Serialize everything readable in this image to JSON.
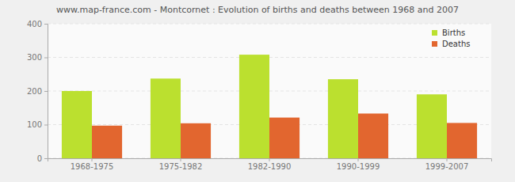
{
  "chart_data": {
    "type": "bar",
    "title": "www.map-france.com - Montcornet : Evolution of births and deaths between 1968 and 2007",
    "categories": [
      "1968-1975",
      "1975-1982",
      "1982-1990",
      "1990-1999",
      "1999-2007"
    ],
    "series": [
      {
        "name": "Births",
        "color": "#bbe02f",
        "values": [
          200,
          237,
          308,
          235,
          190
        ]
      },
      {
        "name": "Deaths",
        "color": "#e2662f",
        "values": [
          97,
          104,
          121,
          133,
          105
        ]
      }
    ],
    "ylim": [
      0,
      400
    ],
    "yticks": [
      0,
      100,
      200,
      300,
      400
    ],
    "grid": true,
    "legend": "top-right"
  }
}
